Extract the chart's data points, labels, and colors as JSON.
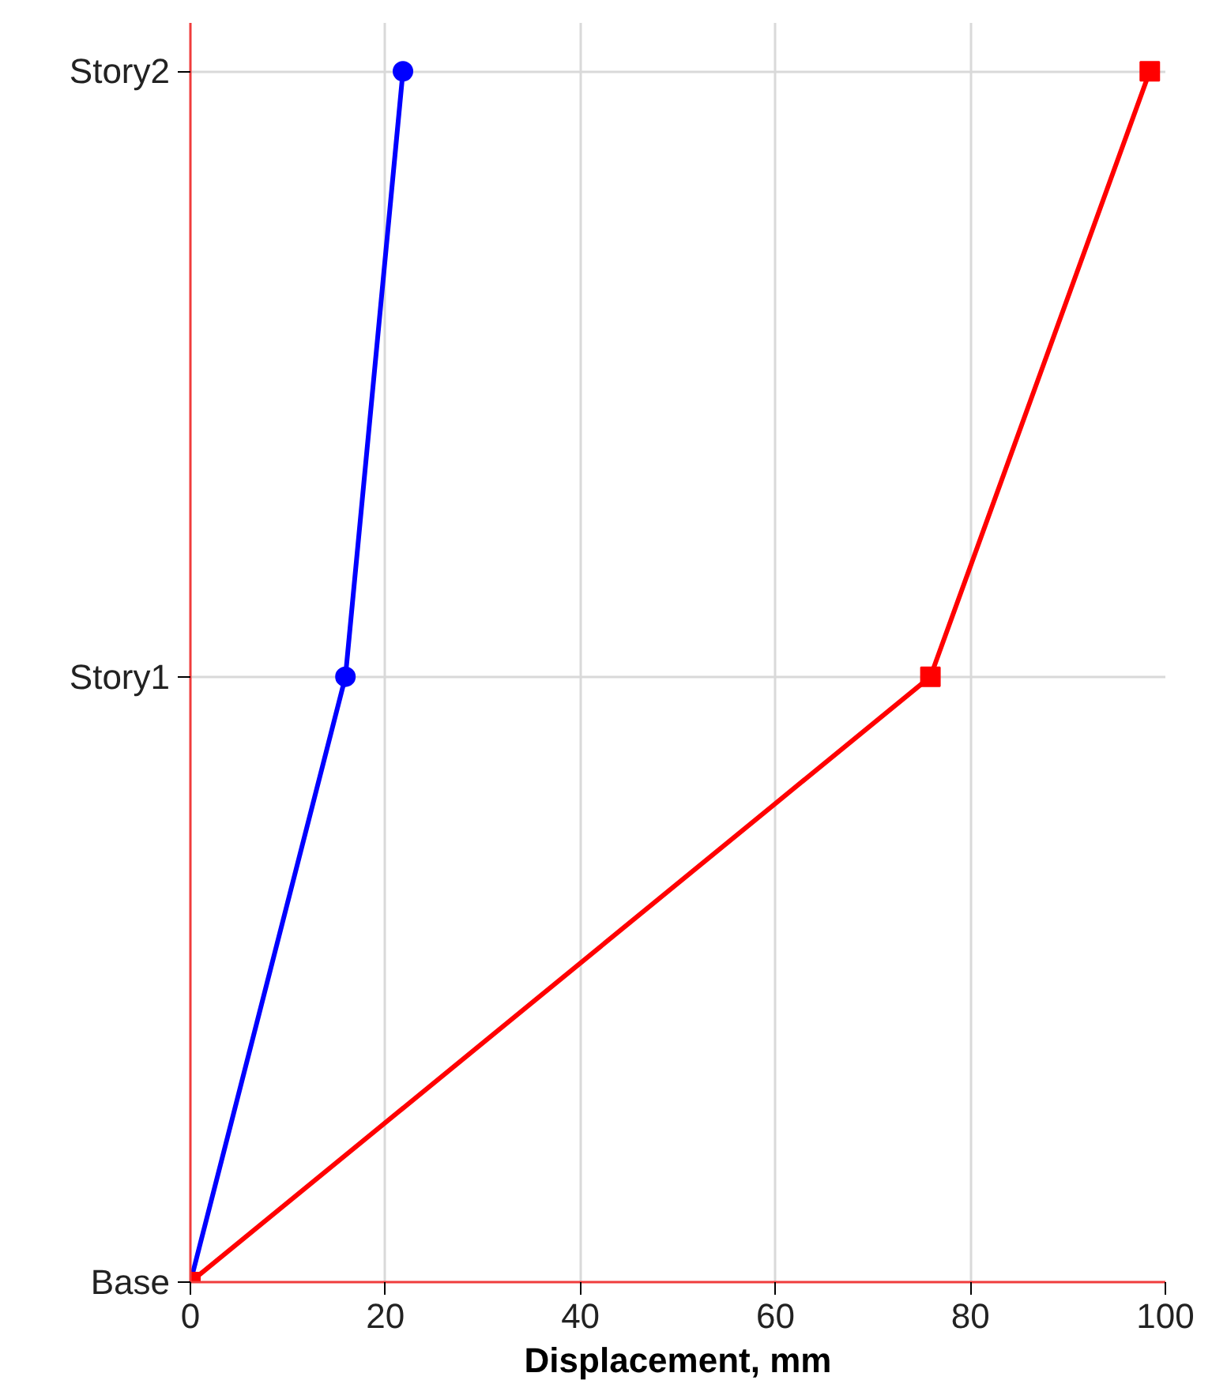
{
  "chart_data": {
    "type": "line",
    "orientation": "horizontal",
    "xlabel": "Displacement, mm",
    "categories": [
      "Story2",
      "Story1",
      "Base"
    ],
    "series": [
      {
        "color": "#0000ff",
        "marker": "circle",
        "values": [
          21.8,
          15.9,
          0
        ]
      },
      {
        "color": "#ff0000",
        "marker": "square",
        "values": [
          98.4,
          75.9,
          0
        ]
      }
    ],
    "xlim": [
      0,
      100
    ],
    "xticks": [
      0,
      20,
      40,
      60,
      80,
      100
    ],
    "grid": true,
    "line_style": "solid"
  }
}
